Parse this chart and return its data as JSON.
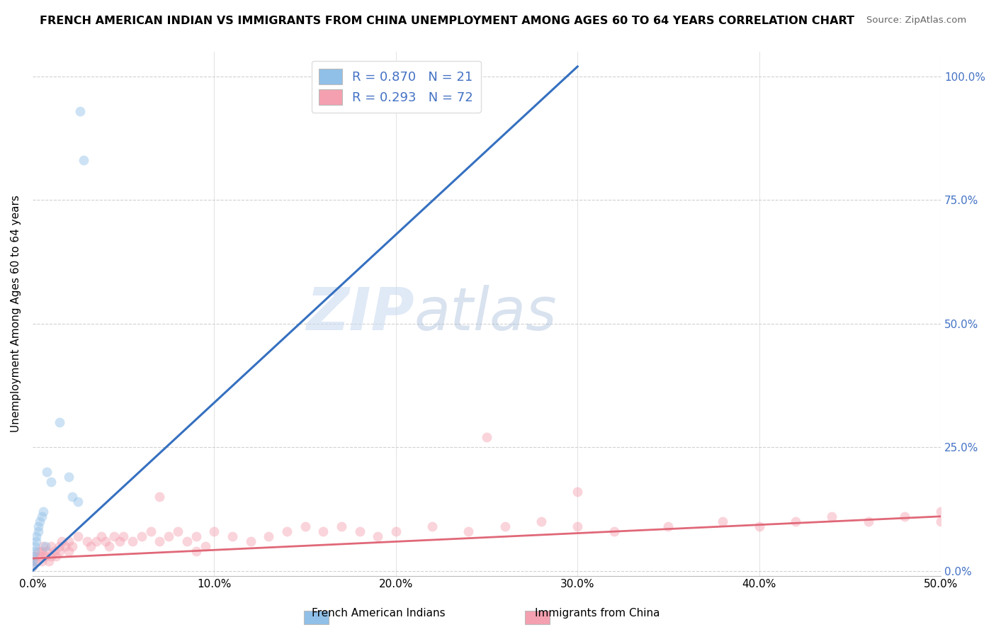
{
  "title": "FRENCH AMERICAN INDIAN VS IMMIGRANTS FROM CHINA UNEMPLOYMENT AMONG AGES 60 TO 64 YEARS CORRELATION CHART",
  "source": "Source: ZipAtlas.com",
  "xlabel_ticks": [
    "0.0%",
    "10.0%",
    "20.0%",
    "30.0%",
    "40.0%",
    "50.0%"
  ],
  "ylabel_label": "Unemployment Among Ages 60 to 64 years",
  "ylabel_ticks": [
    "0.0%",
    "25.0%",
    "50.0%",
    "75.0%",
    "100.0%"
  ],
  "ylabel_tick_vals": [
    0.0,
    0.25,
    0.5,
    0.75,
    1.0
  ],
  "xlim": [
    0,
    0.5
  ],
  "ylim": [
    -0.01,
    1.05
  ],
  "legend_items": [
    {
      "label": "R = 0.870   N = 21",
      "color": "#aec6e8"
    },
    {
      "label": "R = 0.293   N = 72",
      "color": "#f4b8c1"
    }
  ],
  "legend_x_label": "French American Indians",
  "legend_x_label2": "Immigrants from China",
  "watermark_zip": "ZIP",
  "watermark_atlas": "atlas",
  "blue_scatter_x": [
    0.0,
    0.0,
    0.0,
    0.001,
    0.001,
    0.002,
    0.002,
    0.003,
    0.003,
    0.004,
    0.005,
    0.006,
    0.007,
    0.008,
    0.01,
    0.015,
    0.02,
    0.022,
    0.025,
    0.026,
    0.028
  ],
  "blue_scatter_y": [
    0.01,
    0.02,
    0.03,
    0.04,
    0.05,
    0.06,
    0.07,
    0.08,
    0.09,
    0.1,
    0.11,
    0.12,
    0.05,
    0.2,
    0.18,
    0.3,
    0.19,
    0.15,
    0.14,
    0.93,
    0.83
  ],
  "pink_scatter_x": [
    0.0,
    0.0,
    0.001,
    0.002,
    0.003,
    0.004,
    0.005,
    0.005,
    0.006,
    0.007,
    0.008,
    0.009,
    0.01,
    0.01,
    0.012,
    0.013,
    0.015,
    0.015,
    0.016,
    0.018,
    0.02,
    0.02,
    0.022,
    0.025,
    0.03,
    0.032,
    0.035,
    0.038,
    0.04,
    0.042,
    0.045,
    0.048,
    0.05,
    0.055,
    0.06,
    0.065,
    0.07,
    0.075,
    0.08,
    0.085,
    0.09,
    0.095,
    0.1,
    0.11,
    0.12,
    0.13,
    0.14,
    0.15,
    0.16,
    0.17,
    0.18,
    0.19,
    0.2,
    0.22,
    0.24,
    0.26,
    0.28,
    0.3,
    0.32,
    0.35,
    0.38,
    0.4,
    0.42,
    0.44,
    0.46,
    0.48,
    0.5,
    0.25,
    0.3,
    0.5,
    0.07,
    0.09
  ],
  "pink_scatter_y": [
    0.01,
    0.02,
    0.03,
    0.02,
    0.04,
    0.03,
    0.04,
    0.02,
    0.05,
    0.03,
    0.04,
    0.02,
    0.05,
    0.03,
    0.04,
    0.03,
    0.05,
    0.04,
    0.06,
    0.05,
    0.06,
    0.04,
    0.05,
    0.07,
    0.06,
    0.05,
    0.06,
    0.07,
    0.06,
    0.05,
    0.07,
    0.06,
    0.07,
    0.06,
    0.07,
    0.08,
    0.06,
    0.07,
    0.08,
    0.06,
    0.07,
    0.05,
    0.08,
    0.07,
    0.06,
    0.07,
    0.08,
    0.09,
    0.08,
    0.09,
    0.08,
    0.07,
    0.08,
    0.09,
    0.08,
    0.09,
    0.1,
    0.09,
    0.08,
    0.09,
    0.1,
    0.09,
    0.1,
    0.11,
    0.1,
    0.11,
    0.1,
    0.27,
    0.16,
    0.12,
    0.15,
    0.04
  ],
  "blue_line_x": [
    0.0,
    0.3
  ],
  "blue_line_y": [
    0.0,
    1.02
  ],
  "pink_line_x": [
    0.0,
    0.5
  ],
  "pink_line_y": [
    0.025,
    0.11
  ],
  "scatter_size": 100,
  "scatter_alpha": 0.45,
  "blue_color": "#90c0e8",
  "pink_color": "#f4a0b0",
  "blue_line_color": "#3570c0",
  "pink_line_color": "#e06878",
  "grid_color": "#cccccc",
  "right_axis_color": "#4472c4",
  "title_fontsize": 11.5,
  "source_fontsize": 9.5
}
